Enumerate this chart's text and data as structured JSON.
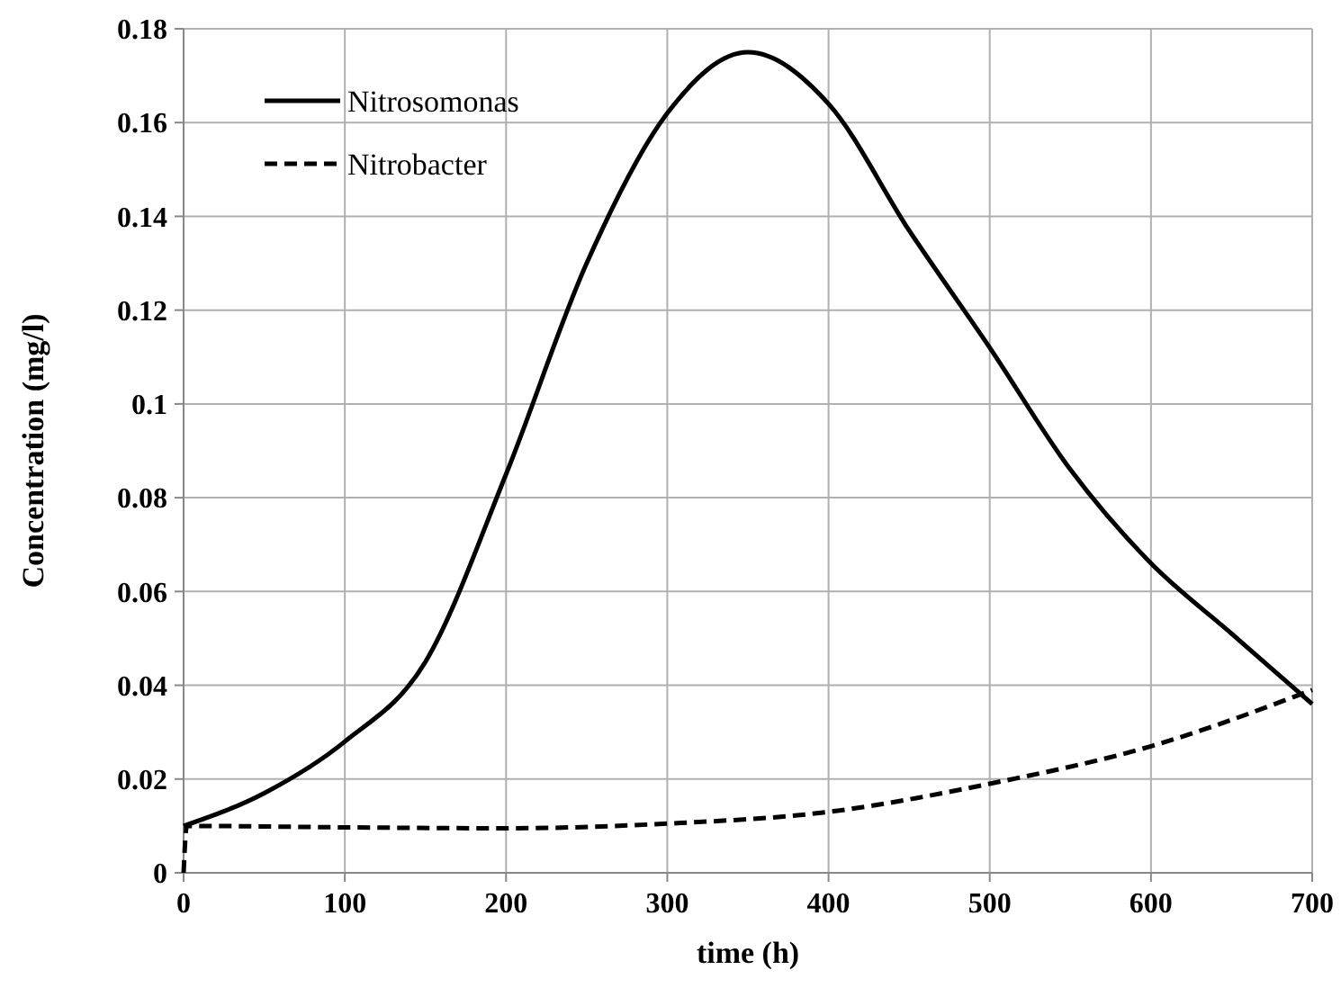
{
  "chart_data": {
    "type": "line",
    "xlabel": "time (h)",
    "ylabel": "Concentration (mg/l)",
    "xlim": [
      0,
      700
    ],
    "xticks": [
      0,
      100,
      200,
      300,
      400,
      500,
      600,
      700
    ],
    "ylim": [
      0,
      0.18
    ],
    "yticks": [
      0,
      0.02,
      0.04,
      0.06,
      0.08,
      0.1,
      0.12,
      0.14,
      0.16,
      0.18
    ],
    "grid": true,
    "legend": "top left",
    "series": [
      {
        "name": "Nitrosomonas",
        "color": "#000000",
        "line_style": "solid",
        "x": [
          0,
          50,
          100,
          150,
          200,
          250,
          300,
          350,
          400,
          450,
          500,
          550,
          600,
          650,
          700
        ],
        "values": [
          0.01,
          0.017,
          0.028,
          0.045,
          0.085,
          0.13,
          0.162,
          0.175,
          0.164,
          0.137,
          0.112,
          0.086,
          0.066,
          0.051,
          0.036
        ]
      },
      {
        "name": "Nitrobacter",
        "color": "#000000",
        "line_style": "dashed",
        "x": [
          0,
          2,
          100,
          200,
          300,
          400,
          500,
          600,
          700
        ],
        "values": [
          0,
          0.01,
          0.0097,
          0.0095,
          0.0105,
          0.013,
          0.019,
          0.027,
          0.039
        ]
      }
    ]
  }
}
